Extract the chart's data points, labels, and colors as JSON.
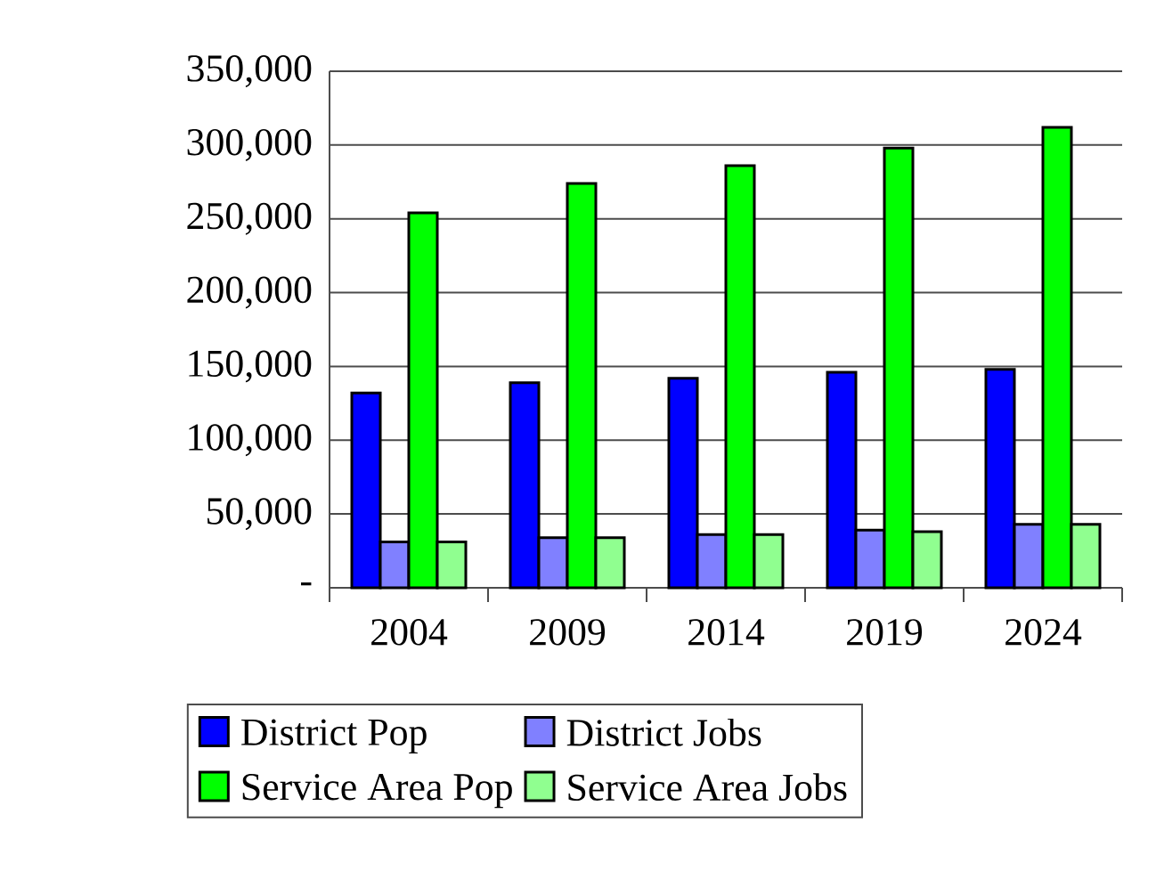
{
  "chart_data": {
    "type": "bar",
    "categories": [
      "2004",
      "2009",
      "2014",
      "2019",
      "2024"
    ],
    "series": [
      {
        "name": "District Pop",
        "color": "#0000ff",
        "values": [
          132000,
          139000,
          142000,
          146000,
          148000
        ]
      },
      {
        "name": "District Jobs",
        "color": "#8080ff",
        "values": [
          31000,
          34000,
          36000,
          39000,
          43000
        ]
      },
      {
        "name": "Service Area Pop",
        "color": "#00ff00",
        "values": [
          254000,
          274000,
          286000,
          298000,
          312000
        ]
      },
      {
        "name": "Service Area Jobs",
        "color": "#90ff90",
        "values": [
          31000,
          34000,
          36000,
          38000,
          43000
        ]
      }
    ],
    "ylim": [
      0,
      350000
    ],
    "yticks": [
      {
        "value": 0,
        "label": "-"
      },
      {
        "value": 50000,
        "label": "50,000"
      },
      {
        "value": 100000,
        "label": "100,000"
      },
      {
        "value": 150000,
        "label": "150,000"
      },
      {
        "value": 200000,
        "label": "200,000"
      },
      {
        "value": 250000,
        "label": "250,000"
      },
      {
        "value": 300000,
        "label": "300,000"
      },
      {
        "value": 350000,
        "label": "350,000"
      }
    ],
    "grid": "y",
    "legend": "bottom"
  }
}
